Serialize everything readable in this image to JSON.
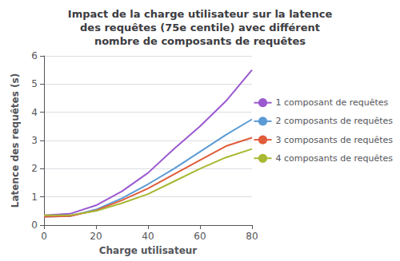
{
  "chart_data": {
    "type": "line",
    "title": "Impact de la charge utilisateur sur la latence\ndes requêtes (75e centile) avec différent\nnombre de composants de requêtes",
    "xlabel": "Charge utilisateur",
    "ylabel": "Latence des requêtes (s)",
    "x": [
      0,
      10,
      20,
      30,
      40,
      50,
      60,
      70,
      80
    ],
    "series": [
      {
        "name": "1 composant de requêtes",
        "color": "#9b59d0",
        "values": [
          0.35,
          0.4,
          0.7,
          1.2,
          1.85,
          2.7,
          3.5,
          4.4,
          5.5
        ]
      },
      {
        "name": "2 composants de requêtes",
        "color": "#5b9bd5",
        "values": [
          0.3,
          0.32,
          0.55,
          0.95,
          1.45,
          2.0,
          2.6,
          3.2,
          3.75
        ]
      },
      {
        "name": "3 composants de requêtes",
        "color": "#e05c3a",
        "values": [
          0.3,
          0.32,
          0.52,
          0.88,
          1.3,
          1.8,
          2.3,
          2.8,
          3.1
        ]
      },
      {
        "name": "4 composants de requêtes",
        "color": "#a8b832",
        "values": [
          0.35,
          0.35,
          0.5,
          0.78,
          1.1,
          1.55,
          2.0,
          2.4,
          2.7
        ]
      }
    ],
    "xlim": [
      0,
      80
    ],
    "ylim": [
      0,
      6
    ],
    "xticks": [
      0,
      20,
      40,
      60,
      80
    ],
    "yticks": [
      0,
      1,
      2,
      3,
      4,
      5,
      6
    ],
    "grid": true,
    "legend": "right"
  }
}
